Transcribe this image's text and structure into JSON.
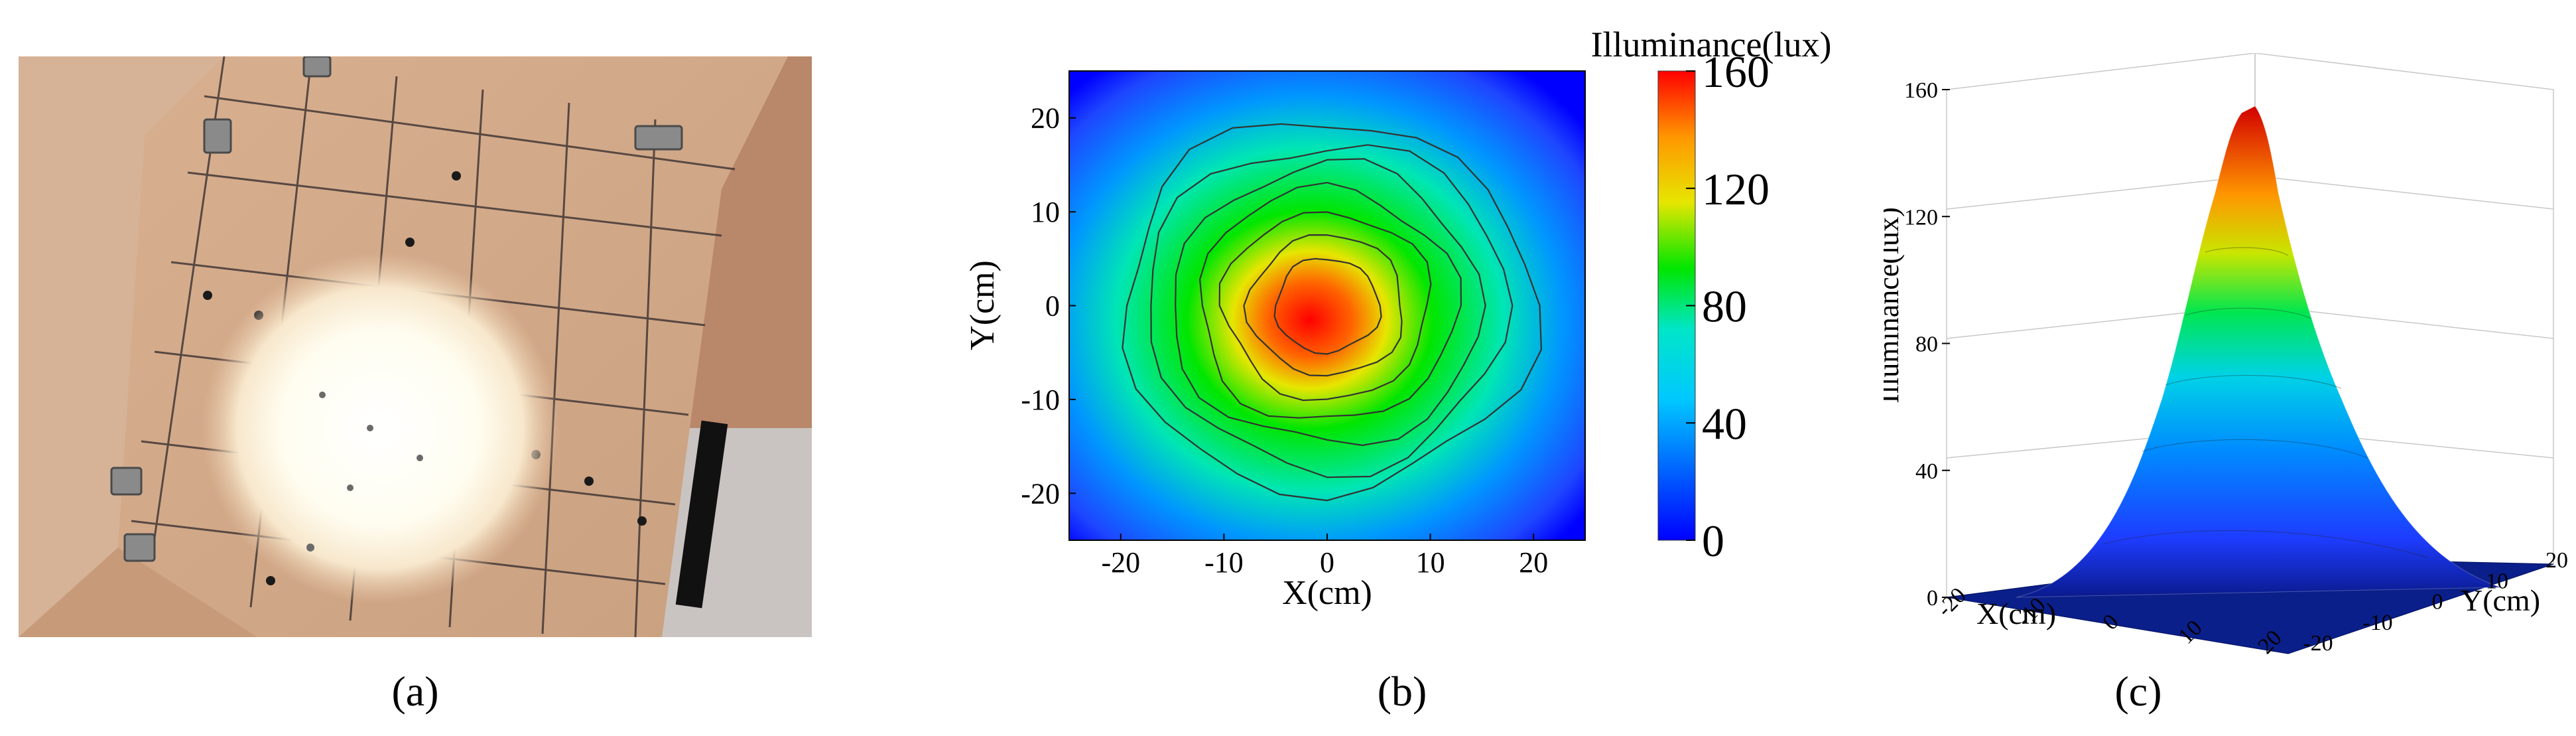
{
  "panel_labels": [
    "(a)",
    "(b)",
    "(c)"
  ],
  "chart_data": [
    {
      "type": "heatmap",
      "xlabel": "X(cm)",
      "ylabel": "Y(cm)",
      "xlim": [
        -25,
        25
      ],
      "ylim": [
        -25,
        25
      ],
      "xticks": [
        -20,
        -10,
        0,
        10,
        20
      ],
      "yticks": [
        -20,
        -10,
        0,
        10,
        20
      ],
      "colorbar_title": "Illuminance(lux)",
      "colorbar_range": [
        0,
        160
      ],
      "colorbar_ticks": [
        0,
        40,
        80,
        120,
        160
      ],
      "contour_levels": [
        20,
        40,
        60,
        80,
        100,
        120,
        140
      ],
      "peak_value": 160,
      "peak_location": [
        0,
        0
      ],
      "colormap": [
        "#0000ff",
        "#0096ff",
        "#00e6e6",
        "#00e600",
        "#e6e600",
        "#ff9600",
        "#ff0000"
      ]
    },
    {
      "type": "surface",
      "xlabel": "X(cm)",
      "ylabel": "Y(cm)",
      "zlabel": "Illuminance(lux)",
      "xticks": [
        -20,
        -10,
        0,
        10,
        20
      ],
      "yticks": [
        -20,
        -10,
        0,
        10,
        20
      ],
      "zticks": [
        0,
        40,
        80,
        120,
        160
      ],
      "zlim": [
        0,
        160
      ],
      "peak_value": 160,
      "peak_location": [
        0,
        0
      ]
    }
  ]
}
